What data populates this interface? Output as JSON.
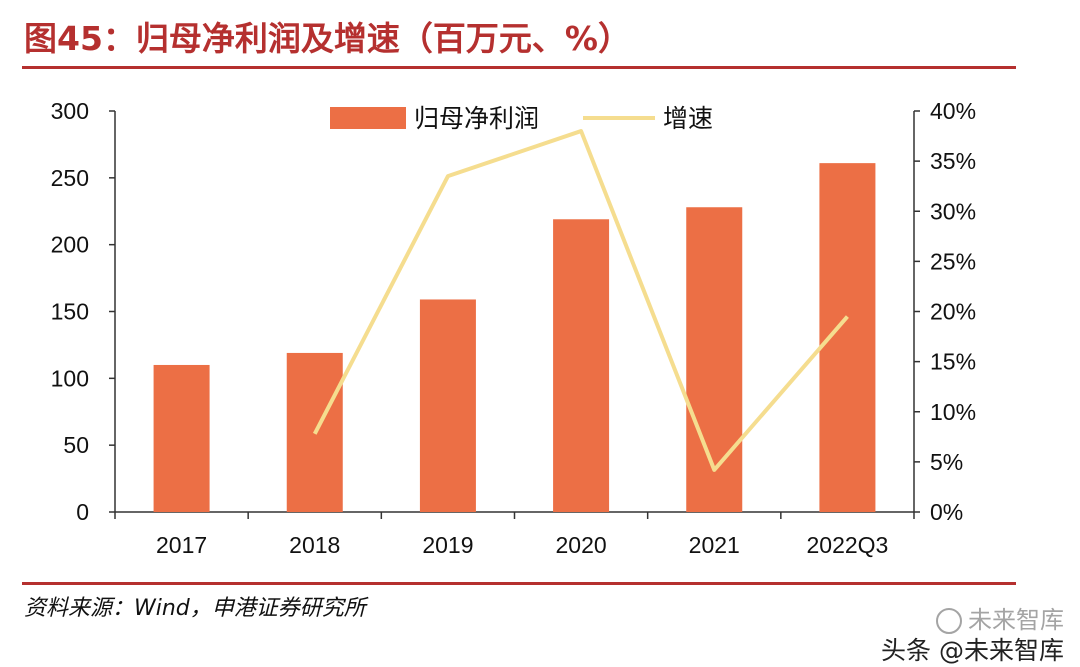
{
  "header": {
    "title": "图45：归母净利润及增速（百万元、%）"
  },
  "footer": {
    "source": "资料来源：Wind，申港证券研究所"
  },
  "watermark": {
    "top": "未来智库",
    "bottom": "头条 @未来智库"
  },
  "colors": {
    "bar": "#ec6f45",
    "line": "#f5dd8f",
    "rule": "#b5302f"
  },
  "chart_data": {
    "type": "bar",
    "title": "",
    "categories": [
      "2017",
      "2018",
      "2019",
      "2020",
      "2021",
      "2022Q3"
    ],
    "series": [
      {
        "name": "归母净利润",
        "type": "bar",
        "axis": "left",
        "values": [
          110,
          119,
          159,
          219,
          228,
          261
        ]
      },
      {
        "name": "增速",
        "type": "line",
        "axis": "right",
        "values": [
          null,
          7.8,
          33.5,
          38.0,
          4.2,
          19.5
        ]
      }
    ],
    "ylim_left": [
      0,
      300
    ],
    "yticks_left": [
      "0",
      "50",
      "100",
      "150",
      "200",
      "250",
      "300"
    ],
    "ylim_right": [
      0,
      40
    ],
    "yticks_right": [
      "0%",
      "5%",
      "10%",
      "15%",
      "20%",
      "25%",
      "30%",
      "35%",
      "40%"
    ],
    "legend_position": "top-center",
    "grid": false
  }
}
